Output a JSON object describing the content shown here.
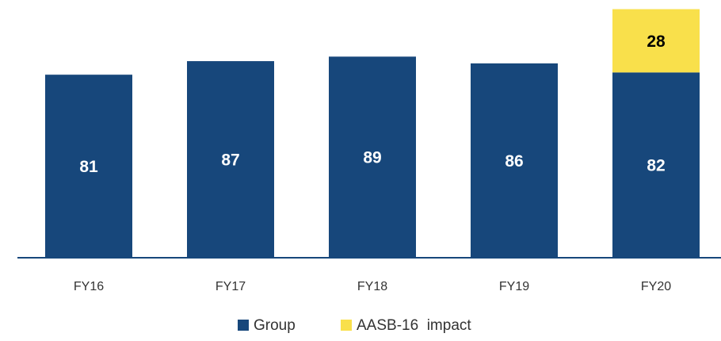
{
  "chart_data": {
    "type": "stacked_bar",
    "categories": [
      "FY16",
      "FY17",
      "FY18",
      "FY19",
      "FY20"
    ],
    "series": [
      {
        "name": "Group",
        "color": "#17477b",
        "values": [
          81,
          87,
          89,
          86,
          82
        ]
      },
      {
        "name": "AASB-16  impact",
        "color": "#f9e04b",
        "values": [
          null,
          null,
          null,
          null,
          28
        ]
      }
    ],
    "ylim": [
      0,
      113
    ]
  }
}
